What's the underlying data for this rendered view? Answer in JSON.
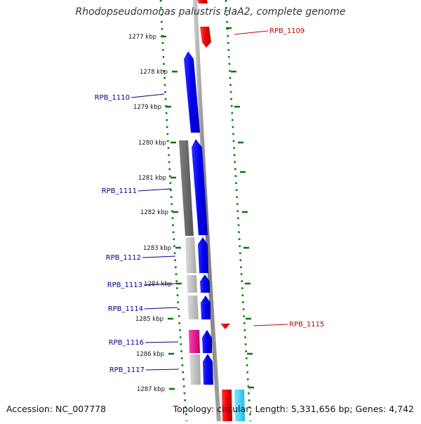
{
  "title": "Rhodopseudomonas palustris HaA2, complete genome",
  "accession_text": "Accession: NC_007778",
  "topology_text": "Topology: circular; Length: 5,331,656 bp; Genes: 4,742",
  "colors": {
    "forward_cds": "#0000f0",
    "reverse_cds": "#f00000",
    "reverse_orf": "#30c8f0",
    "gene_grey_dark": "#666666",
    "gene_grey_light": "#c0c0c0",
    "gene_magenta": "#e0108a",
    "backbone": "#888888",
    "tick": "#007700",
    "label_forward": "#00008b",
    "label_reverse": "#c00000"
  },
  "ticks": [
    "1277 kbp",
    "1278 kbp",
    "1279 kbp",
    "1280 kbp",
    "1281 kbp",
    "1282 kbp",
    "1283 kbp",
    "1284 kbp",
    "1285 kbp",
    "1286 kbp",
    "1287 kbp"
  ],
  "gene_labels": [
    {
      "text": "RPB_1109",
      "strand": "reverse"
    },
    {
      "text": "RPB_1110",
      "strand": "forward"
    },
    {
      "text": "RPB_1111",
      "strand": "forward"
    },
    {
      "text": "RPB_1112",
      "strand": "forward"
    },
    {
      "text": "RPB_1113",
      "strand": "forward"
    },
    {
      "text": "RPB_1114",
      "strand": "forward"
    },
    {
      "text": "RPB_1115",
      "strand": "reverse"
    },
    {
      "text": "RPB_1116",
      "strand": "forward"
    },
    {
      "text": "RPB_1117",
      "strand": "forward"
    }
  ]
}
